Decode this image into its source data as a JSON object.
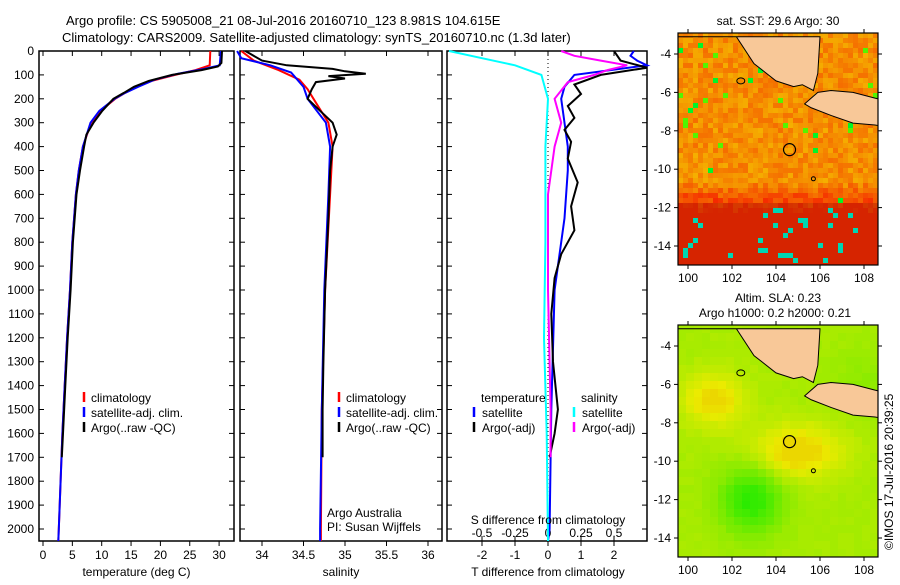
{
  "title_line1": "Argo profile: CS 5905008_21 08-Jul-2016 20160710_123 8.981S 104.615E",
  "title_line2": "Climatology: CARS2009. Satellite-adjusted climatology: synTS_20160710.nc (1.3d later)",
  "credit": "©IMOS 17-Jul-2016 20:39:25",
  "colors": {
    "clim": "#ff0000",
    "sat": "#0000ff",
    "argo": "#000000",
    "s_sat": "#00ffff",
    "s_argo": "#ff00ff"
  },
  "chart_data": [
    {
      "type": "line",
      "id": "temperature",
      "xlabel": "temperature (deg C)",
      "ylabel": "",
      "xlim": [
        -1,
        31
      ],
      "ylim": [
        2050,
        0
      ],
      "xticks": [
        "0",
        "5",
        "10",
        "15",
        "20",
        "25",
        "30"
      ],
      "yticks": [
        "0",
        "100",
        "200",
        "300",
        "400",
        "500",
        "600",
        "700",
        "800",
        "900",
        "1000",
        "1100",
        "1200",
        "1300",
        "1400",
        "1500",
        "1600",
        "1700",
        "1800",
        "1900",
        "2000"
      ],
      "legend": [
        "climatology",
        "satellite-adj. clim.",
        "Argo(..raw -QC)"
      ],
      "legend_position": "lower-center",
      "series": [
        {
          "name": "climatology",
          "color": "#ff0000",
          "points": [
            [
              0,
              28.5
            ],
            [
              60,
              28.4
            ],
            [
              80,
              26
            ],
            [
              100,
              22.5
            ],
            [
              125,
              18.5
            ],
            [
              150,
              16
            ],
            [
              175,
              14
            ],
            [
              200,
              12.3
            ],
            [
              250,
              9.8
            ],
            [
              300,
              8.2
            ],
            [
              400,
              6.8
            ],
            [
              500,
              6.1
            ],
            [
              600,
              5.6
            ],
            [
              800,
              5
            ],
            [
              1000,
              4.6
            ],
            [
              1200,
              4.1
            ],
            [
              1400,
              3.7
            ],
            [
              1600,
              3.3
            ],
            [
              1800,
              3
            ],
            [
              2000,
              2.7
            ],
            [
              2050,
              2.6
            ]
          ]
        },
        {
          "name": "satellite-adj. clim.",
          "color": "#0000ff",
          "points": [
            [
              0,
              30.3
            ],
            [
              60,
              30.1
            ],
            [
              75,
              27.5
            ],
            [
              95,
              23
            ],
            [
              120,
              19
            ],
            [
              150,
              16.2
            ],
            [
              175,
              14
            ],
            [
              200,
              12.2
            ],
            [
              250,
              9.6
            ],
            [
              300,
              8.1
            ],
            [
              400,
              6.8
            ],
            [
              500,
              6.1
            ],
            [
              600,
              5.6
            ],
            [
              800,
              5
            ],
            [
              1000,
              4.6
            ],
            [
              1200,
              4.1
            ],
            [
              1400,
              3.7
            ],
            [
              1600,
              3.3
            ],
            [
              1800,
              3
            ],
            [
              2000,
              2.7
            ],
            [
              2050,
              2.6
            ]
          ]
        },
        {
          "name": "Argo(..raw -QC)",
          "color": "#000000",
          "points": [
            [
              0,
              30.5
            ],
            [
              50,
              30.4
            ],
            [
              65,
              29.8
            ],
            [
              80,
              27
            ],
            [
              100,
              22
            ],
            [
              125,
              18
            ],
            [
              150,
              15.5
            ],
            [
              175,
              13.8
            ],
            [
              200,
              12
            ],
            [
              250,
              10.1
            ],
            [
              300,
              8.6
            ],
            [
              350,
              7.4
            ],
            [
              400,
              7
            ],
            [
              500,
              6.3
            ],
            [
              600,
              5.7
            ],
            [
              800,
              5.1
            ],
            [
              1000,
              4.7
            ],
            [
              1200,
              4.2
            ],
            [
              1400,
              3.8
            ],
            [
              1600,
              3.4
            ],
            [
              1700,
              3.2
            ]
          ]
        }
      ]
    },
    {
      "type": "line",
      "id": "salinity",
      "xlabel": "salinity",
      "xlim": [
        33.7,
        36.1
      ],
      "ylim": [
        2050,
        0
      ],
      "xticks": [
        "34",
        "34.5",
        "35",
        "35.5",
        "36"
      ],
      "legend": [
        "climatology",
        "satellite-adj. clim.",
        "Argo(..raw -QC)"
      ],
      "annotation": [
        "Argo Australia",
        "PI: Susan Wijffels"
      ],
      "series": [
        {
          "name": "climatology",
          "color": "#ff0000",
          "points": [
            [
              0,
              33.75
            ],
            [
              40,
              33.9
            ],
            [
              80,
              34.2
            ],
            [
              120,
              34.45
            ],
            [
              160,
              34.55
            ],
            [
              200,
              34.62
            ],
            [
              300,
              34.8
            ],
            [
              400,
              34.85
            ],
            [
              600,
              34.82
            ],
            [
              1000,
              34.76
            ],
            [
              1500,
              34.72
            ],
            [
              2000,
              34.71
            ],
            [
              2050,
              34.71
            ]
          ]
        },
        {
          "name": "satellite-adj. clim.",
          "color": "#0000ff",
          "points": [
            [
              0,
              33.7
            ],
            [
              30,
              33.75
            ],
            [
              60,
              34.1
            ],
            [
              90,
              34.35
            ],
            [
              150,
              34.5
            ],
            [
              200,
              34.55
            ],
            [
              300,
              34.77
            ],
            [
              400,
              34.82
            ],
            [
              600,
              34.8
            ],
            [
              1000,
              34.75
            ],
            [
              1500,
              34.72
            ],
            [
              2000,
              34.7
            ],
            [
              2050,
              34.7
            ]
          ]
        },
        {
          "name": "Argo(..raw -QC)",
          "color": "#000000",
          "points": [
            [
              0,
              33.8
            ],
            [
              40,
              34.0
            ],
            [
              60,
              34.3
            ],
            [
              75,
              34.85
            ],
            [
              85,
              35.0
            ],
            [
              95,
              35.25
            ],
            [
              105,
              34.8
            ],
            [
              115,
              35.0
            ],
            [
              130,
              34.65
            ],
            [
              160,
              34.6
            ],
            [
              200,
              34.55
            ],
            [
              250,
              34.7
            ],
            [
              300,
              34.85
            ],
            [
              350,
              34.9
            ],
            [
              400,
              34.85
            ],
            [
              500,
              34.82
            ],
            [
              700,
              34.8
            ],
            [
              1000,
              34.76
            ],
            [
              1300,
              34.74
            ],
            [
              1500,
              34.73
            ],
            [
              1700,
              34.73
            ]
          ]
        }
      ]
    },
    {
      "type": "line",
      "id": "differences",
      "xlabel": "T difference from climatology",
      "xlabel2": "S difference from climatology",
      "xlim": [
        -3.1,
        3.1
      ],
      "ylim": [
        2050,
        0
      ],
      "xticks": [
        "-2",
        "-1",
        "0",
        "1",
        "2"
      ],
      "xticks2": [
        "-0.5",
        "-0.25",
        "0",
        "0.25",
        "0.5"
      ],
      "legend_headers": [
        "temperature",
        "salinity"
      ],
      "legend": [
        "satellite",
        "Argo(-adj)",
        "satellite",
        "Argo(-adj)"
      ],
      "series": [
        {
          "name": "temperature satellite",
          "color": "#0000ff",
          "points": [
            [
              0,
              2.6
            ],
            [
              20,
              2.5
            ],
            [
              40,
              2.7
            ],
            [
              60,
              3.0
            ],
            [
              100,
              0.8
            ],
            [
              150,
              0.5
            ],
            [
              200,
              0.4
            ],
            [
              300,
              0.5
            ],
            [
              400,
              0.6
            ],
            [
              500,
              0.6
            ],
            [
              700,
              0.5
            ],
            [
              1000,
              0.2
            ],
            [
              1500,
              0.1
            ],
            [
              2000,
              0.05
            ],
            [
              2050,
              0
            ]
          ]
        },
        {
          "name": "temperature Argo(-adj)",
          "color": "#000000",
          "points": [
            [
              0,
              2.0
            ],
            [
              40,
              2.2
            ],
            [
              70,
              3.0
            ],
            [
              100,
              1.6
            ],
            [
              140,
              0.8
            ],
            [
              180,
              1.0
            ],
            [
              230,
              0.6
            ],
            [
              280,
              0.8
            ],
            [
              330,
              0.5
            ],
            [
              380,
              0.7
            ],
            [
              450,
              0.6
            ],
            [
              550,
              0.9
            ],
            [
              650,
              0.7
            ],
            [
              750,
              0.8
            ],
            [
              850,
              0.4
            ],
            [
              950,
              0.2
            ],
            [
              1100,
              0.1
            ],
            [
              1300,
              0.15
            ],
            [
              1500,
              0.3
            ],
            [
              1600,
              0.2
            ],
            [
              1700,
              0.05
            ]
          ]
        },
        {
          "name": "salinity satellite",
          "color": "#00ffff",
          "points": [
            [
              0,
              -0.75
            ],
            [
              30,
              -0.5
            ],
            [
              60,
              -0.25
            ],
            [
              100,
              -0.05
            ],
            [
              200,
              0.0
            ],
            [
              400,
              -0.02
            ],
            [
              800,
              -0.02
            ],
            [
              1200,
              -0.03
            ],
            [
              1600,
              -0.01
            ],
            [
              2050,
              0
            ]
          ]
        },
        {
          "name": "salinity Argo(-adj)",
          "color": "#ff00ff",
          "points": [
            [
              0,
              0.1
            ],
            [
              20,
              0.2
            ],
            [
              40,
              0.4
            ],
            [
              60,
              0.6
            ],
            [
              80,
              0.45
            ],
            [
              100,
              0.35
            ],
            [
              130,
              0.15
            ],
            [
              200,
              0.05
            ],
            [
              300,
              0.1
            ],
            [
              400,
              0.05
            ],
            [
              600,
              0.0
            ],
            [
              1000,
              0.0
            ],
            [
              1500,
              0.02
            ],
            [
              1700,
              0.02
            ]
          ]
        }
      ]
    },
    {
      "type": "heatmap",
      "id": "sst-map",
      "title": "sat. SST: 29.6 Argo: 30",
      "xticks": [
        "100",
        "102",
        "104",
        "106",
        "108"
      ],
      "yticks": [
        "-4",
        "-6",
        "-8",
        "-10",
        "-12",
        "-14"
      ],
      "xlim": [
        99.5,
        109.7
      ],
      "ylim": [
        -14.9,
        -3.1
      ],
      "marker": [
        104.615,
        -8.981
      ]
    },
    {
      "type": "heatmap",
      "id": "sla-map",
      "title_line1": "Altim. SLA: 0.23",
      "title_line2": "Argo h1000: 0.2 h2000: 0.21",
      "xticks": [
        "100",
        "102",
        "104",
        "106",
        "108"
      ],
      "yticks": [
        "-4",
        "-6",
        "-8",
        "-10",
        "-12",
        "-14"
      ],
      "xlim": [
        99.5,
        109.7
      ],
      "ylim": [
        -14.9,
        -3.1
      ],
      "marker": [
        104.615,
        -8.981
      ]
    }
  ]
}
